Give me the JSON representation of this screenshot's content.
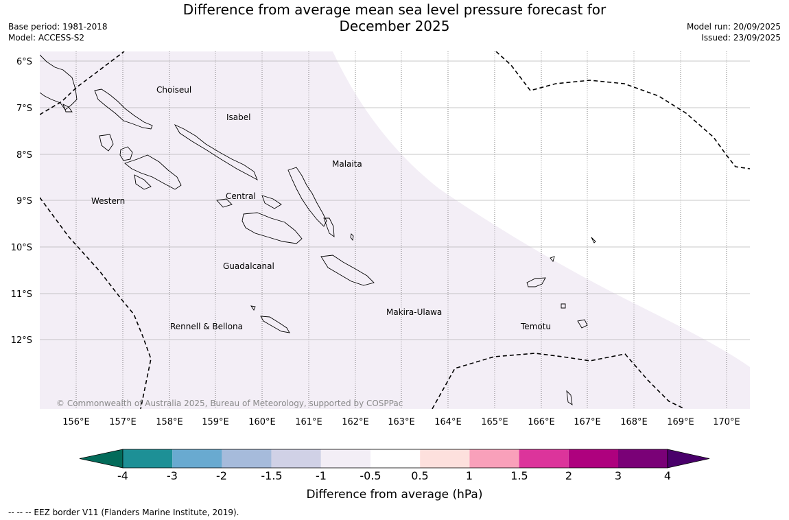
{
  "header": {
    "title_line1": "Difference from average mean sea level pressure forecast for",
    "title_line2": "December 2025",
    "base_period": "Base period: 1981-2018",
    "model": "Model: ACCESS-S2",
    "model_run": "Model run: 20/09/2025",
    "issued": "Issued: 23/09/2025"
  },
  "map": {
    "lat_labels": [
      "6°S",
      "7°S",
      "8°S",
      "9°S",
      "10°S",
      "11°S",
      "12°S"
    ],
    "lon_labels": [
      "156°E",
      "157°E",
      "158°E",
      "159°E",
      "160°E",
      "161°E",
      "162°E",
      "163°E",
      "164°E",
      "165°E",
      "166°E",
      "167°E",
      "168°E",
      "169°E",
      "170°E"
    ],
    "place_labels": {
      "choiseul": "Choiseul",
      "isabel": "Isabel",
      "malaita": "Malaita",
      "western": "Western",
      "central": "Central",
      "guadalcanal": "Guadalcanal",
      "makira": "Makira-Ulawa",
      "rennell": "Rennell & Bellona",
      "temotu": "Temotu"
    },
    "copyright": "© Commonwealth of Australia 2025, Bureau of Meteorology, supported by COSPPac",
    "anomaly_fill_class": "-1 to -0.5",
    "anomaly_color": "#f3eef6"
  },
  "colorbar": {
    "title": "Difference from average (hPa)",
    "ticks": [
      "-4",
      "-3",
      "-2",
      "-1.5",
      "-1",
      "-0.5",
      "0.5",
      "1",
      "1.5",
      "2",
      "3",
      "4"
    ],
    "colors": [
      "#1d9096",
      "#69aad0",
      "#a6bbdb",
      "#d0d1e6",
      "#f3eef6",
      "#ffffff",
      "#fde0dd",
      "#f9a0ba",
      "#dc349b",
      "#ae017e",
      "#7a0177"
    ],
    "under_color": "#036b5a",
    "over_color": "#49006a"
  },
  "footnote": "--  --  -- EEZ border V11 (Flanders Marine Institute, 2019)."
}
